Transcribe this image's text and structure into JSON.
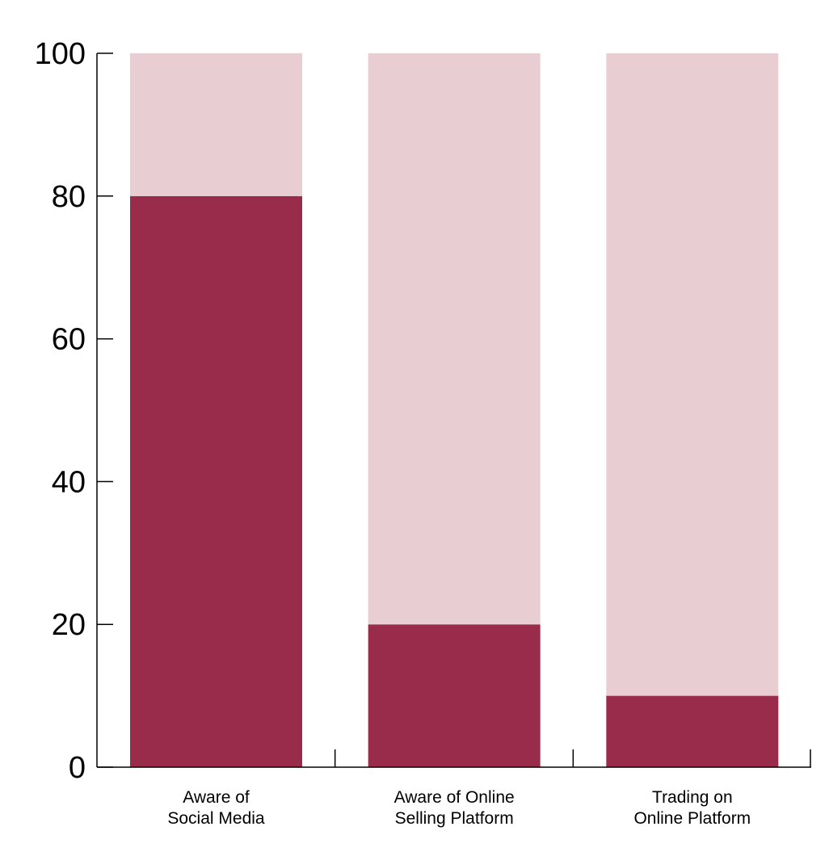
{
  "chart_data": {
    "type": "bar",
    "stacked": true,
    "categories": [
      [
        "Aware of",
        "Social Media"
      ],
      [
        "Aware of Online",
        "Selling Platform"
      ],
      [
        "Trading on",
        "Online Platform"
      ]
    ],
    "series": [
      {
        "values": [
          80,
          20,
          10
        ],
        "color": "#992b4b"
      },
      {
        "values": [
          20,
          80,
          90
        ],
        "color": "#e8ced2"
      }
    ],
    "ylim": [
      0,
      100
    ],
    "yticks": [
      "0",
      "20",
      "40",
      "60",
      "80",
      "100"
    ],
    "xlabel": "",
    "ylabel": "",
    "grid": false,
    "legend": "none"
  }
}
